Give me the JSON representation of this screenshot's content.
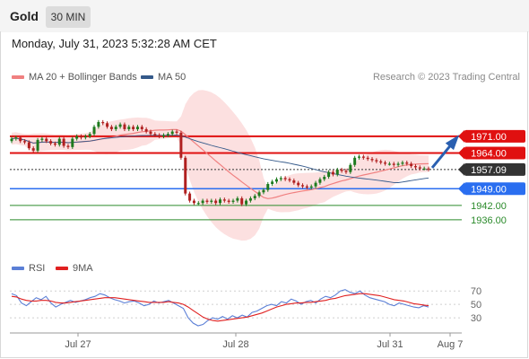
{
  "header": {
    "instrument": "Gold",
    "timeframe": "30 MIN"
  },
  "timestamp": "Monday, July 31, 2023 5:32:28 AM CET",
  "credit": "Research © 2023 Trading Central",
  "legend_main": [
    {
      "label": "MA 20 + Bollinger Bands",
      "color": "#f08080"
    },
    {
      "label": "MA 50",
      "color": "#34598a"
    }
  ],
  "legend_rsi": [
    {
      "label": "RSI",
      "color": "#5b7fd6"
    },
    {
      "label": "9MA",
      "color": "#e02020"
    }
  ],
  "chart_data": [
    {
      "type": "candlestick",
      "ylim": [
        1922,
        1980
      ],
      "x_ticks": [
        "Jul 27",
        "Jul 28",
        "Jul 31",
        "Aug 7"
      ],
      "levels": [
        {
          "label": "1971.00",
          "value": 1971.0,
          "kind": "resistance",
          "color": "#e01010"
        },
        {
          "label": "1964.00",
          "value": 1964.0,
          "kind": "resistance",
          "color": "#e01010"
        },
        {
          "label": "1957.09",
          "value": 1957.09,
          "kind": "last_price",
          "color": "#333333"
        },
        {
          "label": "1949.00",
          "value": 1949.0,
          "kind": "pivot",
          "color": "#2a6ef0"
        },
        {
          "label": "1942.00",
          "value": 1942.0,
          "kind": "support",
          "color": "#2a8a2a"
        },
        {
          "label": "1936.00",
          "value": 1936.0,
          "kind": "support",
          "color": "#2a8a2a"
        }
      ],
      "close": [
        1970,
        1970.5,
        1969,
        1968.5,
        1966,
        1965,
        1969.5,
        1970,
        1969,
        1968,
        1967.5,
        1970,
        1967,
        1966.5,
        1970,
        1971,
        1970.5,
        1971,
        1972,
        1975,
        1977,
        1976.5,
        1975,
        1974,
        1975,
        1976,
        1974,
        1975,
        1974,
        1975,
        1974,
        1973,
        1972,
        1971.5,
        1971,
        1971.5,
        1972,
        1973,
        1972.5,
        1962,
        1947,
        1944,
        1943,
        1943,
        1944,
        1943.5,
        1944,
        1943,
        1944.5,
        1944,
        1943.5,
        1944,
        1945,
        1942.5,
        1944,
        1945,
        1946,
        1947.5,
        1948.5,
        1951,
        1952,
        1953,
        1953.5,
        1953,
        1952.5,
        1951.5,
        1950.5,
        1950,
        1949.5,
        1950,
        1951.5,
        1953,
        1954,
        1956,
        1955,
        1957,
        1956.5,
        1956,
        1959,
        1962,
        1962.5,
        1962,
        1961.5,
        1961,
        1960.5,
        1960,
        1959.5,
        1959.5,
        1959,
        1959.5,
        1960,
        1959.5,
        1958.5,
        1958,
        1957.5,
        1957.5,
        1957.09
      ],
      "open": [
        1969,
        1970,
        1970.5,
        1969,
        1968.5,
        1966,
        1965,
        1969.5,
        1970,
        1969,
        1968,
        1967.5,
        1970,
        1967,
        1966.5,
        1970,
        1971,
        1970.5,
        1971,
        1972,
        1975,
        1977,
        1976.5,
        1975,
        1974,
        1975,
        1976,
        1974,
        1975,
        1974,
        1975,
        1974,
        1973,
        1972,
        1971.5,
        1971,
        1971.5,
        1972,
        1973,
        1972.5,
        1962,
        1947,
        1944,
        1943,
        1943,
        1944,
        1943.5,
        1944,
        1943,
        1944.5,
        1944,
        1943.5,
        1944,
        1945,
        1942.5,
        1944,
        1945,
        1946,
        1947.5,
        1948.5,
        1951,
        1952,
        1953,
        1953.5,
        1953,
        1952.5,
        1951.5,
        1950.5,
        1950,
        1949.5,
        1950,
        1951.5,
        1953,
        1954,
        1956,
        1955,
        1957,
        1956.5,
        1956,
        1959,
        1962,
        1962.5,
        1962,
        1961.5,
        1961,
        1960.5,
        1960,
        1959.5,
        1959.5,
        1959,
        1959.5,
        1960,
        1959.5,
        1958.5,
        1958,
        1957.5,
        1957.5
      ]
    },
    {
      "type": "line",
      "title": "RSI",
      "ylim": [
        10,
        85
      ],
      "y_ticks": [
        70,
        50,
        30
      ],
      "series": [
        {
          "name": "RSI",
          "values": [
            66,
            63,
            52,
            48,
            54,
            60,
            57,
            62,
            52,
            46,
            50,
            53,
            56,
            53,
            55,
            57,
            60,
            62,
            66,
            64,
            60,
            57,
            55,
            52,
            54,
            55,
            52,
            48,
            50,
            55,
            52,
            54,
            56,
            52,
            48,
            44,
            30,
            22,
            18,
            20,
            26,
            30,
            28,
            32,
            28,
            33,
            30,
            34,
            31,
            38,
            40,
            44,
            48,
            50,
            48,
            54,
            52,
            58,
            55,
            50,
            54,
            56,
            52,
            58,
            62,
            60,
            64,
            70,
            72,
            68,
            66,
            70,
            64,
            60,
            58,
            56,
            54,
            50,
            48,
            52,
            50,
            48,
            46,
            45,
            48,
            46
          ]
        },
        {
          "name": "9MA",
          "values": [
            62,
            61,
            58,
            56,
            55,
            55,
            56,
            56,
            55,
            53,
            52,
            52,
            53,
            54,
            55,
            56,
            57,
            58,
            59,
            60,
            60,
            60,
            59,
            58,
            57,
            56,
            55,
            54,
            53,
            53,
            53,
            53,
            54,
            53,
            52,
            50,
            46,
            41,
            36,
            31,
            28,
            26,
            25,
            26,
            27,
            28,
            29,
            30,
            31,
            33,
            35,
            37,
            40,
            43,
            46,
            48,
            50,
            51,
            52,
            52,
            53,
            53,
            54,
            55,
            56,
            58,
            59,
            61,
            63,
            64,
            65,
            66,
            66,
            65,
            64,
            63,
            61,
            59,
            57,
            56,
            55,
            53,
            51,
            50,
            49,
            48
          ]
        }
      ]
    }
  ]
}
